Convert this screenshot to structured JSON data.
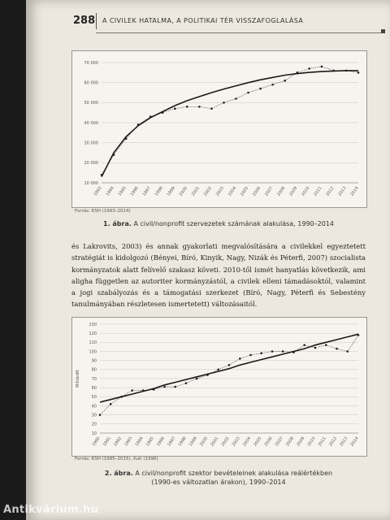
{
  "header": {
    "page_number": "288",
    "running_head": "A CIVILEK HATALMA, A POLITIKAI TÉR VISSZAFOGLALÁSA"
  },
  "figure1": {
    "source": "Forrás: KSH (1993–2014)",
    "caption_label": "1. ábra.",
    "caption_text": "A civil/nonprofit szervezetek számának alakulása, 1990–2014",
    "chart_data": {
      "type": "line",
      "x": [
        "1993",
        "1994",
        "1995",
        "1996",
        "1997",
        "1998",
        "1999",
        "2000",
        "2001",
        "2002",
        "2003",
        "2004",
        "2005",
        "2006",
        "2007",
        "2008",
        "2009",
        "2010",
        "2011",
        "2012",
        "2013",
        "2014"
      ],
      "ytick_labels": [
        "10 000",
        "20 000",
        "30 000",
        "40 000",
        "50 000",
        "60 000",
        "70 000"
      ],
      "ylim": [
        10000,
        70000
      ],
      "series": [
        {
          "style": "dotted-with-markers",
          "values": [
            14000,
            24000,
            32000,
            39000,
            43000,
            45000,
            47000,
            48000,
            48000,
            47000,
            50000,
            52000,
            55000,
            57000,
            59000,
            61000,
            65000,
            67000,
            68000,
            66000,
            66000,
            65000
          ]
        },
        {
          "style": "trend",
          "values": [
            13000,
            25000,
            33000,
            38500,
            42500,
            45500,
            48500,
            51000,
            53000,
            55000,
            56800,
            58400,
            60000,
            61400,
            62600,
            63700,
            64500,
            65100,
            65500,
            65800,
            66000,
            66000
          ]
        }
      ]
    }
  },
  "body": {
    "paragraph1": "és Lakrovits, 2003) és annak gyakorlati megvalósítására a civilekkel egyeztetett stratégiát is kidolgozó (Bényei, Bíró, Kinyik, Nagy, Nizák és Péterfi, 2007) szocialista kormányzatok alatt felívelő szakasz követi. 2010-től ismét hanyatlás következik, ami aligha független az autoriter kormányzástól, a civilek elleni támadásoktól, valamint a jogi szabályozás és a támogatási szerkezet (Bíró, Nagy, Péterfi és Sebestény tanulmányában részletesen ismertetett) változásaitól."
  },
  "figure2": {
    "source": "Forrás: KSH (1995–2015), Kuti (1996)",
    "caption_label": "2. ábra.",
    "caption_line1": "A civil/nonprofit szektor bevételeinek alakulása reálértékben",
    "caption_line2": "(1990-es változatlan árakon), 1990–2014",
    "chart_data": {
      "type": "line",
      "ylabel": "Milliárdft",
      "x": [
        "1990",
        "1991",
        "1992",
        "1993",
        "1994",
        "1995",
        "1996",
        "1997",
        "1998",
        "1999",
        "2000",
        "2001",
        "2002",
        "2003",
        "2004",
        "2005",
        "2006",
        "2007",
        "2008",
        "2009",
        "2010",
        "2011",
        "2012",
        "2013",
        "2014"
      ],
      "ytick_labels": [
        "10",
        "20",
        "30",
        "40",
        "50",
        "60",
        "70",
        "80",
        "90",
        "100",
        "110",
        "120",
        "130"
      ],
      "ylim": [
        10,
        130
      ],
      "series": [
        {
          "style": "dotted-with-markers",
          "values": [
            30,
            42,
            50,
            57,
            57,
            58,
            61,
            61,
            65,
            70,
            74,
            80,
            85,
            92,
            96,
            98,
            100,
            100,
            99,
            107,
            104,
            107,
            103,
            100,
            118
          ]
        },
        {
          "style": "trend",
          "values": [
            44,
            47,
            50,
            53,
            56,
            59,
            63,
            66,
            69,
            72,
            75,
            78,
            81,
            85,
            88,
            91,
            94,
            97,
            100,
            103,
            107,
            110,
            113,
            116,
            119
          ]
        }
      ]
    }
  },
  "watermark": "Antikvárium.hu",
  "colors": {
    "page": "#ece8df",
    "chart_bg": "#f6f4ef",
    "line": "#1a1a1a",
    "grid": "#c9c6be"
  }
}
